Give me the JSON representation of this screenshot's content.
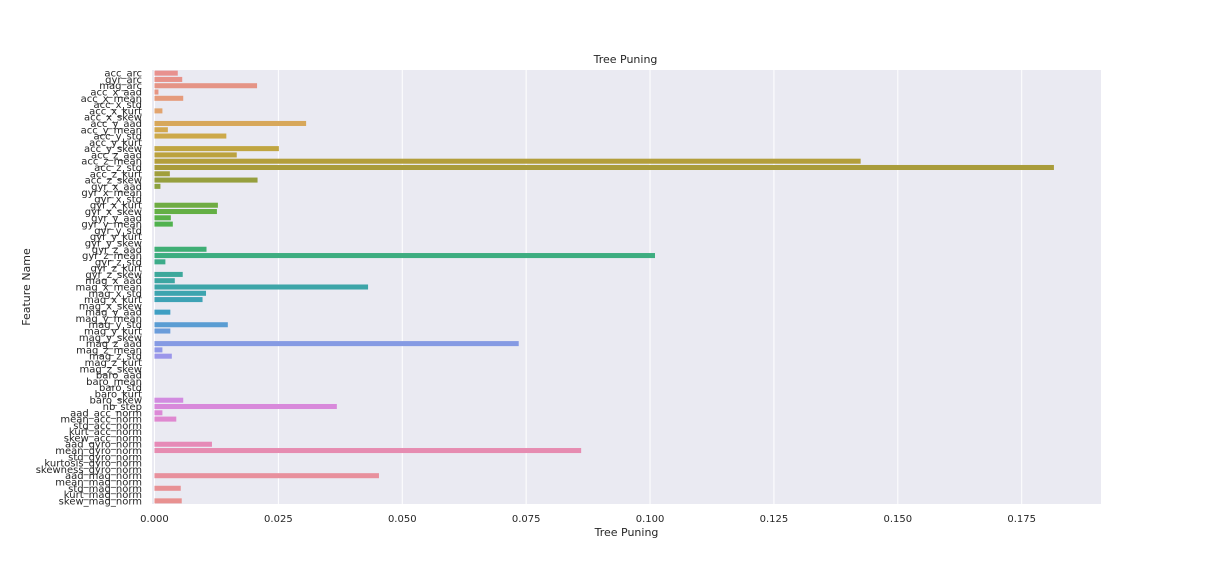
{
  "chart_data": {
    "type": "bar",
    "orientation": "horizontal",
    "title": "Tree Puning",
    "xlabel": "Tree Puning",
    "ylabel": "Feature Name",
    "xlim": [
      -0.0005,
      0.191
    ],
    "xticks": [
      0.0,
      0.025,
      0.05,
      0.075,
      0.1,
      0.125,
      0.15,
      0.175
    ],
    "xtick_labels": [
      "0.000",
      "0.025",
      "0.050",
      "0.075",
      "0.100",
      "0.125",
      "0.150",
      "0.175"
    ],
    "grid": true,
    "background": "#EAEAF2",
    "categories": [
      "acc_arc",
      "gyr_arc",
      "mag_arc",
      "acc_x_aad",
      "acc_x_mean",
      "acc_x_std",
      "acc_x_kurt",
      "acc_x_skew",
      "acc_y_aad",
      "acc_y_mean",
      "acc_y_std",
      "acc_y_kurt",
      "acc_y_skew",
      "acc_z_aad",
      "acc_z_mean",
      "acc_z_std",
      "acc_z_kurt",
      "acc_z_skew",
      "gyr_x_aad",
      "gyr_x_mean",
      "gyr_x_std",
      "gyr_x_kurt",
      "gyr_x_skew",
      "gyr_y_aad",
      "gyr_y_mean",
      "gyr_y_std",
      "gyr_y_kurt",
      "gyr_y_skew",
      "gyr_z_aad",
      "gyr_z_mean",
      "gyr_z_std",
      "gyr_z_kurt",
      "gyr_z_skew",
      "mag_x_aad",
      "mag_x_mean",
      "mag_x_std",
      "mag_x_kurt",
      "mag_x_skew",
      "mag_y_aad",
      "mag_y_mean",
      "mag_y_std",
      "mag_y_kurt",
      "mag_y_skew",
      "mag_z_aad",
      "mag_z_mean",
      "mag_z_std",
      "mag_z_kurt",
      "mag_z_skew",
      "baro_aad",
      "baro_mean",
      "baro_std",
      "baro_kurt",
      "baro_skew",
      "nb_step",
      "aad_acc_norm",
      "mean_acc_norm",
      "std_acc_norm",
      "kurt_acc_norm",
      "skew_acc_norm",
      "aad_gyro_norm",
      "mean_gyro_norm",
      "std_gyro_norm",
      "kurtosis_gyro_norm",
      "skewness_gyro_norm",
      "aad_mag_norm",
      "mean_mag_norm",
      "std_mag_norm",
      "kurt_mag_norm",
      "skew_mag_norm"
    ],
    "values": [
      0.0047,
      0.0056,
      0.0207,
      0.0008,
      0.0058,
      0.0,
      0.0016,
      0.0,
      0.0306,
      0.0027,
      0.0145,
      0.0,
      0.0251,
      0.0166,
      0.1425,
      0.1815,
      0.0031,
      0.0208,
      0.0012,
      0.0,
      0.0,
      0.0128,
      0.0126,
      0.0033,
      0.0037,
      0.0,
      0.0,
      0.0,
      0.0105,
      0.101,
      0.0022,
      0.0,
      0.0057,
      0.0041,
      0.0431,
      0.0104,
      0.0097,
      0.0,
      0.0032,
      0.0,
      0.0148,
      0.0032,
      0.0,
      0.0735,
      0.0016,
      0.0035,
      0.0,
      0.0,
      0.0,
      0.0,
      0.0,
      0.0,
      0.0058,
      0.0368,
      0.0016,
      0.0044,
      0.0,
      0.0,
      0.0,
      0.0116,
      0.0861,
      0.0,
      0.0,
      0.0,
      0.0453,
      0.0,
      0.0053,
      0.0,
      0.0055
    ],
    "colors": [
      "#E8918F",
      "#E7928A",
      "#E59486",
      "#E69583",
      "#E59B7C",
      "#E3A074",
      "#E2A46E",
      "#DDA564",
      "#D7A75A",
      "#D2A84E",
      "#CDA94A",
      "#C6A845",
      "#C0A541",
      "#BBA23E",
      "#B39E3B",
      "#A99C3B",
      "#A19F3C",
      "#969F3E",
      "#8CA23F",
      "#84A540",
      "#7AA842",
      "#6FAC43",
      "#64AF45",
      "#5AB148",
      "#50B24E",
      "#4AB258",
      "#45B161",
      "#41B06B",
      "#3FAE75",
      "#3DAD80",
      "#3CAB89",
      "#3CA993",
      "#3DA89B",
      "#3DA6A2",
      "#3DA5A8",
      "#3DA4AF",
      "#3EA2B5",
      "#3EA1BC",
      "#3F9FC3",
      "#4B9DCB",
      "#5A9DD3",
      "#6A9CDA",
      "#789CDF",
      "#859AE3",
      "#9098E7",
      "#9B96EA",
      "#A594EC",
      "#AF92ED",
      "#B890EB",
      "#C08EE9",
      "#C68DE7",
      "#CC8CE4",
      "#D28BE0",
      "#D889DB",
      "#DC88D6",
      "#DF88D0",
      "#E287CA",
      "#E488C3",
      "#E589BD",
      "#E68AB7",
      "#E68CB1",
      "#E78EAB",
      "#E78FA7",
      "#E790A2",
      "#E8909D",
      "#E89099",
      "#E89195",
      "#E89193",
      "#E89190"
    ]
  }
}
